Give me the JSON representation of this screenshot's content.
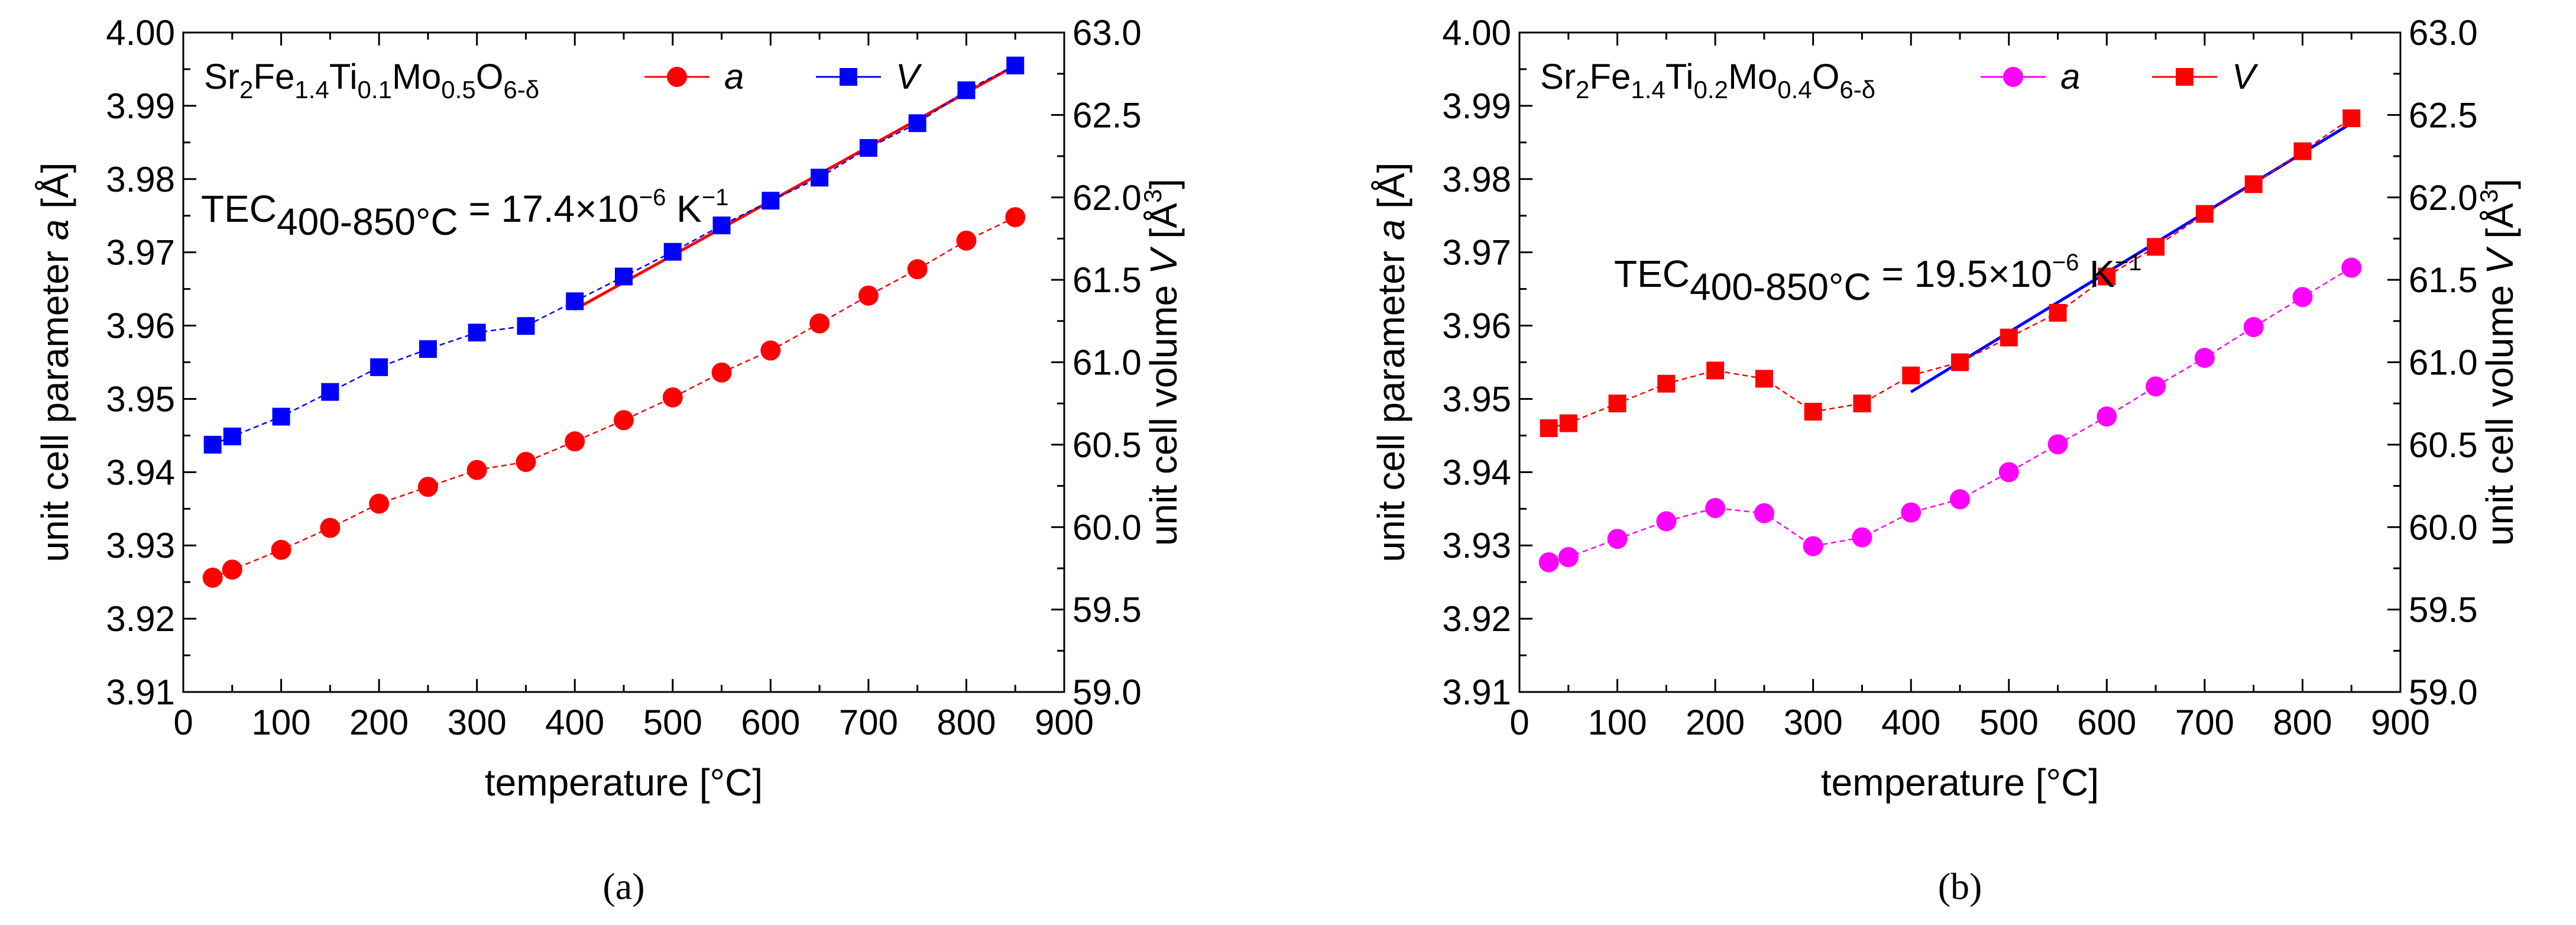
{
  "chart_data": [
    {
      "type": "scatter",
      "panel_label": "(a)",
      "xlabel": "temperature [°C]",
      "ylabel_left": "unit cell parameter a [Å]",
      "ylabel_right": "unit cell volume V [Å³]",
      "xlim": [
        0,
        900
      ],
      "xticks": [
        0,
        100,
        200,
        300,
        400,
        500,
        600,
        700,
        800,
        900
      ],
      "ylim_left": [
        3.91,
        4.0
      ],
      "yticks_left": [
        3.91,
        3.92,
        3.93,
        3.94,
        3.95,
        3.96,
        3.97,
        3.98,
        3.99,
        4.0
      ],
      "ylim_right": [
        59.0,
        63.0
      ],
      "yticks_right": [
        59.0,
        59.5,
        60.0,
        60.5,
        61.0,
        61.5,
        62.0,
        62.5,
        63.0
      ],
      "legend_formula": "Sr2Fe1.4Ti0.1Mo0.5O6-δ",
      "annotation": "TEC400-850°C = 17.4×10⁻⁶ K⁻¹",
      "x": [
        30,
        50,
        100,
        150,
        200,
        250,
        300,
        350,
        400,
        450,
        500,
        550,
        600,
        650,
        700,
        750,
        800,
        850
      ],
      "series": [
        {
          "name": "a",
          "axis": "left",
          "marker": "circle",
          "color": "#ff0000",
          "values": [
            3.9256,
            3.9267,
            3.9294,
            3.9324,
            3.9357,
            3.938,
            3.9403,
            3.9414,
            3.9442,
            3.9471,
            3.9502,
            3.9536,
            3.9566,
            3.9603,
            3.9641,
            3.9677,
            3.9716,
            3.9748
          ]
        },
        {
          "name": "V",
          "axis": "right",
          "marker": "square",
          "color": "#0000ff",
          "values": [
            60.5,
            60.55,
            60.67,
            60.82,
            60.97,
            61.08,
            61.18,
            61.22,
            61.37,
            61.52,
            61.67,
            61.83,
            61.98,
            62.12,
            62.3,
            62.45,
            62.65,
            62.8
          ]
        }
      ],
      "fit_line": {
        "axis": "right",
        "color": "#ff0000",
        "x": [
          400,
          850
        ],
        "y": [
          61.32,
          62.8
        ]
      }
    },
    {
      "type": "scatter",
      "panel_label": "(b)",
      "xlabel": "temperature [°C]",
      "ylabel_left": "unit cell parameter a [Å]",
      "ylabel_right": "unit cell volume V [Å³]",
      "xlim": [
        0,
        900
      ],
      "xticks": [
        0,
        100,
        200,
        300,
        400,
        500,
        600,
        700,
        800,
        900
      ],
      "ylim_left": [
        3.91,
        4.0
      ],
      "yticks_left": [
        3.91,
        3.92,
        3.93,
        3.94,
        3.95,
        3.96,
        3.97,
        3.98,
        3.99,
        4.0
      ],
      "ylim_right": [
        59.0,
        63.0
      ],
      "yticks_right": [
        59.0,
        59.5,
        60.0,
        60.5,
        61.0,
        61.5,
        62.0,
        62.5,
        63.0
      ],
      "legend_formula": "Sr2Fe1.4Ti0.2Mo0.4O6-δ",
      "annotation": "TEC400-850°C = 19.5×10⁻⁶ K⁻¹",
      "x": [
        30,
        50,
        100,
        150,
        200,
        250,
        300,
        350,
        400,
        450,
        500,
        550,
        600,
        650,
        700,
        750,
        800,
        850
      ],
      "series": [
        {
          "name": "a",
          "axis": "left",
          "marker": "circle",
          "color": "#ff00ff",
          "values": [
            3.9277,
            3.9284,
            3.9309,
            3.9333,
            3.9351,
            3.9344,
            3.9299,
            3.9311,
            3.9345,
            3.9363,
            3.94,
            3.9438,
            3.9476,
            3.9517,
            3.9556,
            3.9598,
            3.9639,
            3.9679
          ]
        },
        {
          "name": "V",
          "axis": "right",
          "marker": "square",
          "color": "#ff0000",
          "values": [
            60.6,
            60.63,
            60.75,
            60.87,
            60.95,
            60.9,
            60.7,
            60.75,
            60.92,
            61.0,
            61.15,
            61.3,
            61.52,
            61.7,
            61.9,
            62.08,
            62.28,
            62.48
          ]
        }
      ],
      "fit_line": {
        "axis": "right",
        "color": "#0000ff",
        "x": [
          400,
          850
        ],
        "y": [
          60.82,
          62.45
        ]
      }
    }
  ]
}
